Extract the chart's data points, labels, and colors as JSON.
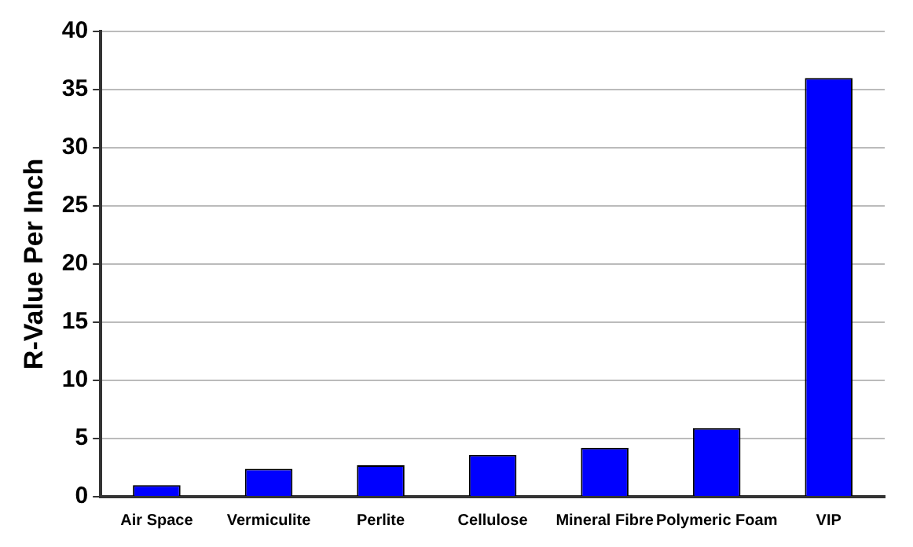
{
  "chart_data": {
    "type": "bar",
    "ylabel": "R-Value Per Inch",
    "categories": [
      "Air Space",
      "Vermiculite",
      "Perlite",
      "Cellulose",
      "Mineral Fibre",
      "Polymeric Foam",
      "VIP"
    ],
    "values": [
      1.0,
      2.4,
      2.7,
      3.6,
      4.2,
      5.9,
      36
    ],
    "color": "#0000ff",
    "ylim": [
      0,
      40
    ],
    "yticks": [
      0,
      5,
      10,
      15,
      20,
      25,
      30,
      35,
      40
    ],
    "grid": "y",
    "legend": false
  }
}
